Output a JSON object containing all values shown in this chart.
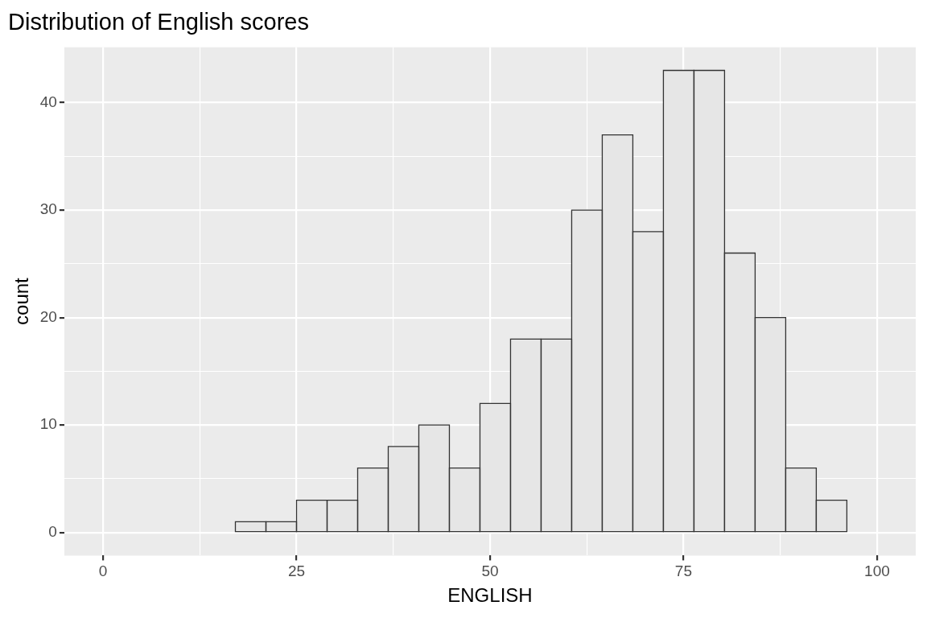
{
  "chart_data": {
    "type": "histogram",
    "title": "Distribution of English scores",
    "xlabel": "ENGLISH",
    "ylabel": "count",
    "bins": [
      17.1,
      21.05,
      25,
      28.95,
      32.9,
      36.85,
      40.8,
      44.75,
      48.7,
      52.65,
      56.6,
      60.55,
      64.5,
      68.45,
      72.4,
      76.35,
      80.3,
      84.25,
      88.2,
      92.15,
      96.1
    ],
    "values": [
      1,
      1,
      3,
      3,
      6,
      8,
      10,
      6,
      12,
      18,
      18,
      30,
      37,
      28,
      43,
      43,
      26,
      20,
      6,
      3
    ],
    "color": "#e6e6e6",
    "xlim": [
      -5,
      105
    ],
    "xticks": [
      0,
      {
        "value": 12.5,
        "label": null
      },
      25,
      {
        "value": 37.5,
        "label": null
      },
      50,
      {
        "value": 62.5,
        "label": null
      },
      75,
      {
        "value": 87.5,
        "label": null
      },
      100
    ],
    "ylim": [
      -2.15,
      45.15
    ],
    "yticks": [
      0,
      {
        "value": 5,
        "label": null
      },
      10,
      {
        "value": 15,
        "label": null
      },
      20,
      {
        "value": 25,
        "label": null
      },
      30,
      {
        "value": 35,
        "label": null
      },
      40
    ],
    "grid": true
  }
}
